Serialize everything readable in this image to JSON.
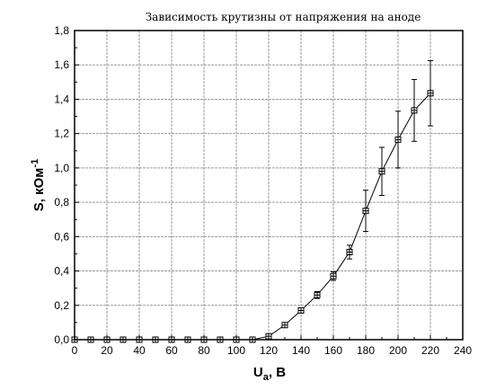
{
  "chart_data": {
    "type": "scatter",
    "title": "Зависимость крутизны от напряжения на аноде",
    "xlabel": "U",
    "xlabel_sub": "a",
    "xlabel_suffix": ", B",
    "ylabel": "S, кОм",
    "ylabel_sup": "-1",
    "xlim": [
      0,
      240
    ],
    "ylim": [
      0,
      1.8
    ],
    "xticks": [
      0,
      20,
      40,
      60,
      80,
      100,
      120,
      140,
      160,
      180,
      200,
      220,
      240
    ],
    "xtick_labels": [
      "0",
      "20",
      "40",
      "60",
      "80",
      "100",
      "120",
      "140",
      "160",
      "180",
      "200",
      "220",
      "240"
    ],
    "yticks": [
      0,
      0.2,
      0.4,
      0.6,
      0.8,
      1.0,
      1.2,
      1.4,
      1.6,
      1.8
    ],
    "ytick_labels": [
      "0,0",
      "0,2",
      "0,4",
      "0,6",
      "0,8",
      "1,0",
      "1,2",
      "1,4",
      "1,6",
      "1,8"
    ],
    "grid": true,
    "series": [
      {
        "x": [
          0,
          10,
          20,
          30,
          40,
          50,
          60,
          70,
          80,
          90,
          100,
          110,
          120,
          130,
          140,
          150,
          160,
          170,
          180,
          190,
          200,
          210,
          220
        ],
        "y": [
          0.0,
          0.0,
          0.0,
          0.0,
          0.0,
          0.0,
          0.0,
          0.0,
          0.0,
          0.0,
          0.0,
          0.0,
          0.02,
          0.085,
          0.17,
          0.26,
          0.37,
          0.51,
          0.75,
          0.98,
          1.165,
          1.335,
          1.435
        ],
        "yerr": [
          0.005,
          0.005,
          0.005,
          0.005,
          0.005,
          0.005,
          0.005,
          0.005,
          0.005,
          0.005,
          0.005,
          0.005,
          0.01,
          0.01,
          0.015,
          0.02,
          0.025,
          0.04,
          0.12,
          0.14,
          0.165,
          0.18,
          0.19
        ]
      }
    ]
  }
}
